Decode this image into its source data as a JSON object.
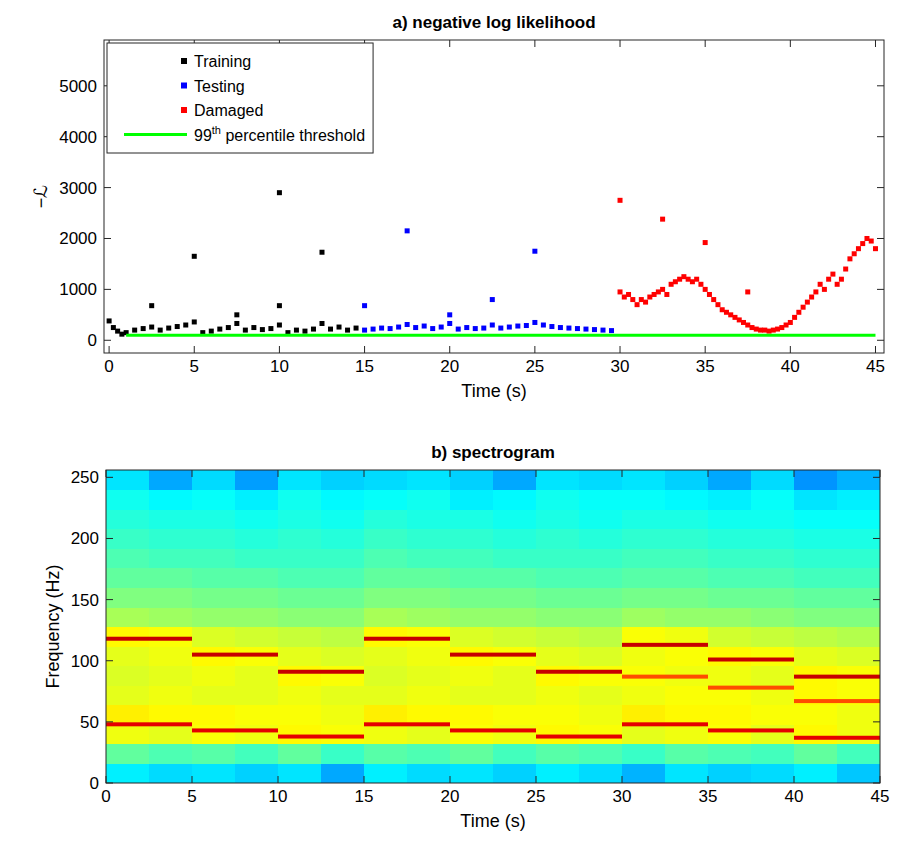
{
  "chart_data": [
    {
      "type": "scatter",
      "title": "a) negative log likelihood",
      "x_label": "Time (s)",
      "y_label": "−ℒ",
      "xlim": [
        -0.3,
        45.5
      ],
      "ylim": [
        -250,
        5900
      ],
      "xticks": [
        0,
        5,
        10,
        15,
        20,
        25,
        30,
        35,
        40,
        45
      ],
      "yticks": [
        0,
        1000,
        2000,
        3000,
        4000,
        5000
      ],
      "legend": "upper left",
      "series": [
        {
          "name": "Training",
          "color": "#000000",
          "marker": "square",
          "x": [
            0,
            0.25,
            0.5,
            0.75,
            1,
            1.5,
            2,
            2.5,
            2.5,
            3,
            3.5,
            4,
            4.5,
            5,
            5,
            5.5,
            6,
            6.5,
            7,
            7.5,
            7.5,
            8,
            8.5,
            9,
            9.5,
            10,
            10,
            10,
            10.5,
            11,
            11.5,
            12,
            12.5,
            12.5,
            13,
            13.5,
            14,
            14.5
          ],
          "values": [
            380,
            250,
            180,
            120,
            150,
            200,
            230,
            680,
            260,
            200,
            240,
            270,
            300,
            1650,
            360,
            150,
            180,
            220,
            250,
            500,
            330,
            200,
            250,
            210,
            230,
            2900,
            680,
            300,
            150,
            200,
            180,
            220,
            1730,
            330,
            220,
            260,
            200,
            240
          ]
        },
        {
          "name": "Testing",
          "color": "#0000ff",
          "marker": "square",
          "x": [
            15,
            15,
            15.5,
            16,
            16.5,
            17,
            17.5,
            17.5,
            18,
            18.5,
            19,
            19.5,
            20,
            20,
            20.5,
            21,
            21.5,
            22,
            22.5,
            22.5,
            23,
            23.5,
            24,
            24.5,
            25,
            25,
            25.5,
            26,
            26.5,
            27,
            27.5,
            28,
            28.5,
            29,
            29.5
          ],
          "values": [
            680,
            200,
            220,
            240,
            230,
            260,
            2150,
            310,
            250,
            280,
            230,
            260,
            500,
            330,
            220,
            250,
            230,
            240,
            800,
            300,
            240,
            260,
            280,
            290,
            1750,
            350,
            300,
            270,
            250,
            240,
            230,
            220,
            210,
            200,
            190
          ]
        },
        {
          "name": "Damaged",
          "color": "#ff0000",
          "marker": "square",
          "x": [
            30,
            30.25,
            30.5,
            30.75,
            31,
            31.25,
            31.5,
            31.75,
            32,
            32.25,
            32.5,
            32.75,
            33,
            33.25,
            33.5,
            33.75,
            34,
            34.25,
            34.5,
            34.75,
            35,
            35.25,
            35.5,
            35.75,
            36,
            36.25,
            36.5,
            36.75,
            37,
            37.25,
            37.5,
            37.75,
            38,
            38.25,
            38.5,
            38.75,
            39,
            39.25,
            39.5,
            39.75,
            40,
            40.25,
            40.5,
            40.75,
            41,
            41.25,
            41.5,
            41.75,
            42,
            42.25,
            42.5,
            42.75,
            43,
            43.25,
            43.5,
            43.75,
            44,
            44.25,
            44.5,
            44.75,
            45,
            30,
            32.5,
            35,
            37.5
          ],
          "values": [
            950,
            850,
            900,
            800,
            700,
            800,
            750,
            850,
            900,
            950,
            1000,
            900,
            1100,
            1150,
            1200,
            1250,
            1200,
            1150,
            1200,
            1100,
            1000,
            900,
            800,
            700,
            600,
            550,
            500,
            450,
            400,
            350,
            300,
            250,
            220,
            200,
            200,
            180,
            200,
            220,
            250,
            300,
            350,
            450,
            550,
            650,
            750,
            850,
            950,
            1100,
            1000,
            1200,
            1300,
            1100,
            1200,
            1400,
            1600,
            1700,
            1800,
            1900,
            2000,
            1950,
            1800,
            2750,
            2380,
            1920,
            950
          ]
        },
        {
          "name": "99th percentile threshold",
          "type": "line",
          "color": "#00ff00",
          "line_style": "solid",
          "x": [
            1,
            45
          ],
          "values": [
            100,
            100
          ]
        }
      ]
    },
    {
      "type": "heatmap",
      "title": "b) spectrogram",
      "x_label": "Time (s)",
      "y_label": "Frequency (Hz)",
      "xlim": [
        0,
        45
      ],
      "ylim": [
        0,
        256
      ],
      "xticks": [
        0,
        5,
        10,
        15,
        20,
        25,
        30,
        35,
        40,
        45
      ],
      "yticks": [
        0,
        50,
        100,
        150,
        200,
        250
      ],
      "color": "jet",
      "zlim": [
        0,
        10
      ],
      "x_edges": [
        0,
        2.5,
        5,
        7.5,
        10,
        12.5,
        15,
        17.5,
        20,
        22.5,
        25,
        27.5,
        30,
        32.5,
        35,
        37.5,
        40,
        42.5,
        45
      ],
      "y_edges": [
        0,
        16,
        32,
        48,
        64,
        80,
        96,
        112,
        128,
        144,
        160,
        176,
        192,
        208,
        224,
        240,
        256
      ],
      "z": [
        [
          3.6,
          3.4,
          3.5,
          3.3,
          3.5,
          2.9,
          3.6,
          3.4,
          3.5,
          3.3,
          3.6,
          3.4,
          3.0,
          3.5,
          3.3,
          3.4,
          3.6,
          3.2
        ],
        [
          4.7,
          4.5,
          4.6,
          4.4,
          4.7,
          4.3,
          4.6,
          4.5,
          4.7,
          4.4,
          4.6,
          4.5,
          4.3,
          4.6,
          4.5,
          4.4,
          4.7,
          4.4
        ],
        [
          6.1,
          6.0,
          6.2,
          6.1,
          6.3,
          6.2,
          6.1,
          6.0,
          6.2,
          6.1,
          6.3,
          6.2,
          6.0,
          6.1,
          6.2,
          6.0,
          6.3,
          6.1
        ],
        [
          6.4,
          6.3,
          6.3,
          6.2,
          6.2,
          6.1,
          6.4,
          6.3,
          6.3,
          6.2,
          6.2,
          6.1,
          6.4,
          6.3,
          6.3,
          6.2,
          6.2,
          6.1
        ],
        [
          6.0,
          6.1,
          6.0,
          6.0,
          6.1,
          6.0,
          6.0,
          6.1,
          6.0,
          6.0,
          6.1,
          6.0,
          6.1,
          6.2,
          6.2,
          6.1,
          6.3,
          6.2
        ],
        [
          5.9,
          6.0,
          6.1,
          6.0,
          6.3,
          6.2,
          5.9,
          6.0,
          6.1,
          6.0,
          6.3,
          6.2,
          6.2,
          6.1,
          6.1,
          6.0,
          6.3,
          6.2
        ],
        [
          6.0,
          6.1,
          6.3,
          6.2,
          6.0,
          5.9,
          6.0,
          6.1,
          6.3,
          6.2,
          6.0,
          5.9,
          6.1,
          6.2,
          6.3,
          6.2,
          6.0,
          5.9
        ],
        [
          6.3,
          6.2,
          5.9,
          5.8,
          5.7,
          5.6,
          6.3,
          6.2,
          5.9,
          5.8,
          5.7,
          5.6,
          6.2,
          6.1,
          5.8,
          5.7,
          5.6,
          5.5
        ],
        [
          5.4,
          5.3,
          5.2,
          5.2,
          5.1,
          5.1,
          5.4,
          5.3,
          5.2,
          5.2,
          5.1,
          5.1,
          5.3,
          5.2,
          5.2,
          5.1,
          5.0,
          5.0
        ],
        [
          5.0,
          5.0,
          4.9,
          4.9,
          4.8,
          4.8,
          5.0,
          5.0,
          4.9,
          4.9,
          4.8,
          4.8,
          4.9,
          4.9,
          4.8,
          4.8,
          4.7,
          4.7
        ],
        [
          4.7,
          4.7,
          4.6,
          4.6,
          4.5,
          4.5,
          4.7,
          4.7,
          4.6,
          4.6,
          4.5,
          4.5,
          4.6,
          4.6,
          4.5,
          4.5,
          4.4,
          4.4
        ],
        [
          4.5,
          4.4,
          4.4,
          4.3,
          4.3,
          4.3,
          4.5,
          4.4,
          4.4,
          4.3,
          4.3,
          4.3,
          4.4,
          4.4,
          4.3,
          4.3,
          4.2,
          4.2
        ],
        [
          4.3,
          4.2,
          4.2,
          4.1,
          4.2,
          4.1,
          4.3,
          4.2,
          4.2,
          4.1,
          4.2,
          4.1,
          4.2,
          4.2,
          4.1,
          4.1,
          4.0,
          4.0
        ],
        [
          4.1,
          4.0,
          4.0,
          3.9,
          4.0,
          3.9,
          4.1,
          4.0,
          4.0,
          3.9,
          4.0,
          3.9,
          4.0,
          4.0,
          3.9,
          3.9,
          3.8,
          3.8
        ],
        [
          3.9,
          3.7,
          3.8,
          3.6,
          3.9,
          3.7,
          3.8,
          3.9,
          3.6,
          3.7,
          3.9,
          3.8,
          3.8,
          3.7,
          3.6,
          3.8,
          3.5,
          3.6
        ],
        [
          3.5,
          2.9,
          3.4,
          2.8,
          3.5,
          3.3,
          3.4,
          3.5,
          3.3,
          2.9,
          3.5,
          3.4,
          3.5,
          3.3,
          2.9,
          3.4,
          2.7,
          3.0
        ]
      ],
      "peaks": {
        "t_start": [
          0,
          0,
          5,
          5,
          10,
          10,
          15,
          15,
          20,
          20,
          25,
          25,
          30,
          30,
          30,
          35,
          35,
          35,
          40,
          40,
          40
        ],
        "t_end": [
          5,
          5,
          10,
          10,
          15,
          15,
          20,
          20,
          25,
          25,
          30,
          30,
          35,
          35,
          35,
          40,
          40,
          40,
          45,
          45,
          45
        ],
        "freq": [
          118,
          48,
          105,
          43,
          91,
          38,
          118,
          48,
          105,
          43,
          91,
          38,
          113,
          87,
          48,
          101,
          78,
          43,
          87,
          67,
          37
        ],
        "power": [
          9.3,
          9.0,
          9.3,
          9.0,
          9.3,
          9.0,
          9.3,
          9.0,
          9.3,
          9.0,
          9.3,
          9.0,
          9.3,
          8.0,
          9.0,
          9.3,
          8.0,
          9.0,
          9.3,
          8.0,
          9.0
        ]
      }
    }
  ]
}
